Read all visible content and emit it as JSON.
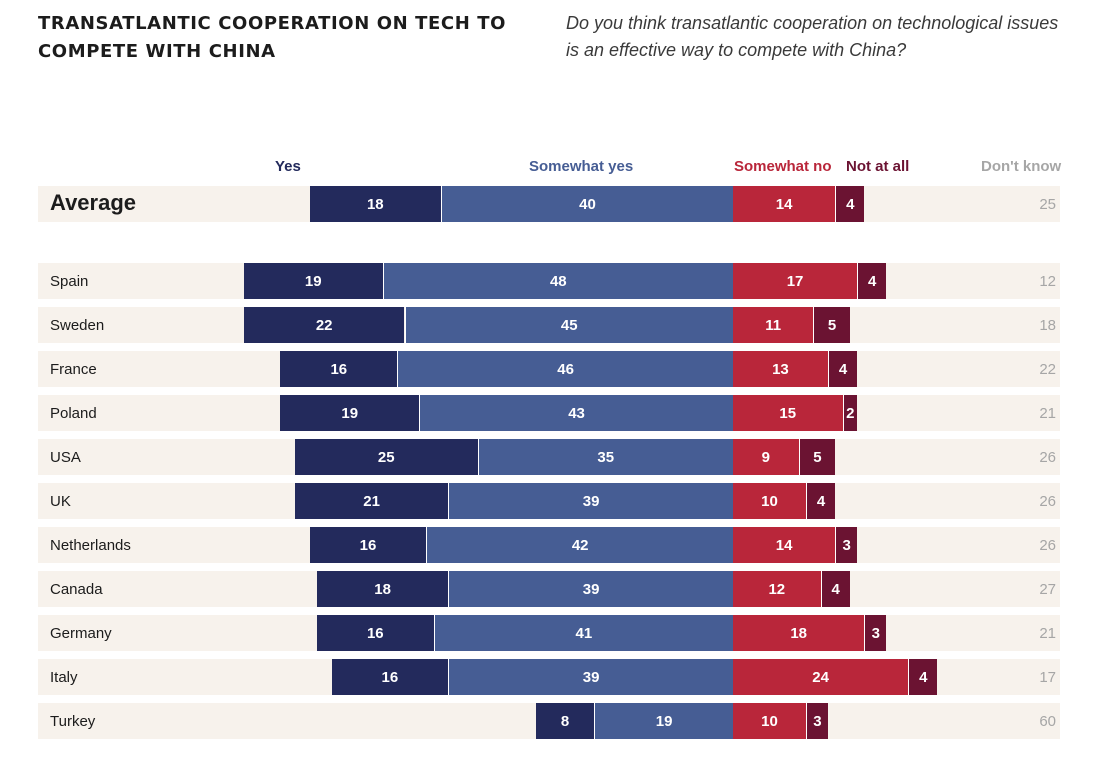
{
  "header": {
    "title": "TRANSATLANTIC COOPERATION ON TECH TO COMPETE WITH CHINA",
    "question": "Do you think transatlantic cooperation on technological issues is an effective way to compete with China?"
  },
  "legend": {
    "yes": "Yes",
    "somewhat_yes": "Somewhat yes",
    "somewhat_no": "Somewhat no",
    "not_at_all": "Not at all",
    "dont_know": "Don't know"
  },
  "colors": {
    "yes": "#232a5c",
    "somewhat_yes": "#465d94",
    "somewhat_no": "#b9263a",
    "not_at_all": "#6b1332",
    "dont_know": "#a6a6a6",
    "row_background": "#f7f2ec"
  },
  "chart_data": {
    "type": "bar",
    "subtype": "diverging-stacked-horizontal",
    "title": "TRANSATLANTIC COOPERATION ON TECH TO COMPETE WITH CHINA",
    "subtitle": "Do you think transatlantic cooperation on technological issues is an effective way to compete with China?",
    "unit": "percent",
    "categories": [
      "Average",
      "Spain",
      "Sweden",
      "France",
      "Poland",
      "USA",
      "UK",
      "Netherlands",
      "Canada",
      "Germany",
      "Italy",
      "Turkey"
    ],
    "series": [
      {
        "name": "Yes",
        "key": "yes",
        "values": [
          18,
          19,
          22,
          16,
          19,
          25,
          21,
          16,
          18,
          16,
          16,
          8
        ]
      },
      {
        "name": "Somewhat yes",
        "key": "somewhat_yes",
        "values": [
          40,
          48,
          45,
          46,
          43,
          35,
          39,
          42,
          39,
          41,
          39,
          19
        ]
      },
      {
        "name": "Somewhat no",
        "key": "somewhat_no",
        "values": [
          14,
          17,
          11,
          13,
          15,
          9,
          10,
          14,
          12,
          18,
          24,
          10
        ]
      },
      {
        "name": "Not at all",
        "key": "not_at_all",
        "values": [
          4,
          4,
          5,
          4,
          2,
          5,
          4,
          3,
          4,
          3,
          4,
          3
        ]
      },
      {
        "name": "Don't know",
        "key": "dont_know",
        "values": [
          25,
          12,
          18,
          22,
          21,
          26,
          26,
          26,
          27,
          21,
          17,
          60
        ]
      }
    ],
    "legend_position": "top",
    "xlabel": "",
    "ylabel": ""
  }
}
